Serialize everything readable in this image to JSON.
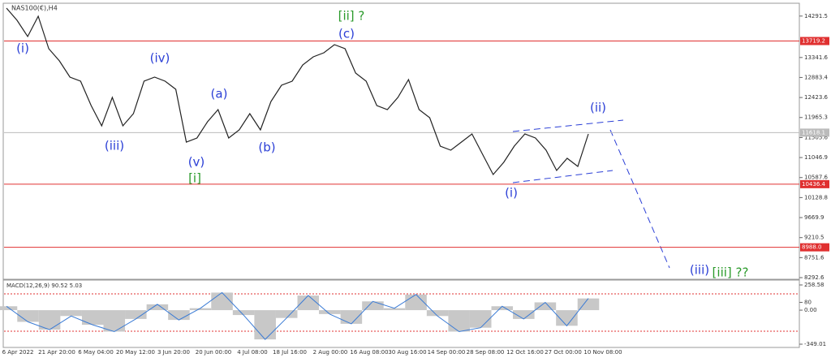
{
  "chart_data": {
    "type": "line",
    "title": "NAS100(€),H4",
    "series": [
      {
        "name": "NAS100",
        "color": "#222222",
        "values": [
          14474,
          14195,
          13822,
          14288,
          13543,
          13264,
          12891,
          12798,
          12240,
          11774,
          12426,
          11774,
          12053,
          12798,
          12891,
          12798,
          12612,
          11402,
          11495,
          11867,
          12146,
          11495,
          11681,
          12053,
          11681,
          12333,
          12705,
          12798,
          13170,
          13357,
          13450,
          13636,
          13543,
          12984,
          12798,
          12240,
          12146,
          12426,
          12835,
          12146,
          11960,
          11309,
          11215,
          11402,
          11588,
          11123,
          10657,
          10936,
          11309,
          11588,
          11495,
          11215,
          10750,
          11029,
          10843,
          11588
        ]
      }
    ],
    "ylim": [
      8274,
      14567
    ],
    "yticks": [
      14291.5,
      13341.6,
      12883.4,
      12423.6,
      11965.3,
      11505.6,
      11046.9,
      10587.6,
      10128.8,
      9669.9,
      9210.5,
      8751.6,
      8292.6
    ],
    "levels": [
      {
        "value": 13719.2,
        "label": "13719.2",
        "color": "#e03030"
      },
      {
        "value": 11618.1,
        "label": "11618.1",
        "color": "#bbbbbb"
      },
      {
        "value": 10436.4,
        "label": "10436.4",
        "color": "#e03030"
      },
      {
        "value": 8988.0,
        "label": "8988.0",
        "color": "#e03030"
      }
    ],
    "time_labels": [
      "6 Apr 2022",
      "21 Apr 20:00",
      "6 May 04:00",
      "20 May 12:00",
      "3 Jun 20:00",
      "20 Jun 00:00",
      "4 Jul 08:00",
      "18 Jul 16:00",
      "2 Aug 00:00",
      "16 Aug 08:00",
      "30 Aug 16:00",
      "14 Sep 00:00",
      "28 Sep 08:00",
      "12 Oct 16:00",
      "27 Oct 00:00",
      "10 Nov 08:00"
    ],
    "annotations": [
      {
        "text": "(i)",
        "color": "#2b3fd6"
      },
      {
        "text": "(iii)",
        "color": "#2b3fd6"
      },
      {
        "text": "(iv)",
        "color": "#2b3fd6"
      },
      {
        "text": "(v)",
        "color": "#2b3fd6"
      },
      {
        "text": "[i]",
        "color": "#2a9a2a"
      },
      {
        "text": "(a)",
        "color": "#2b3fd6"
      },
      {
        "text": "(b)",
        "color": "#2b3fd6"
      },
      {
        "text": "[ii] ?",
        "color": "#2a9a2a"
      },
      {
        "text": "(c)",
        "color": "#2b3fd6"
      },
      {
        "text": "(i)",
        "color": "#2b3fd6"
      },
      {
        "text": "(ii)",
        "color": "#2b3fd6"
      },
      {
        "text": "(iii)",
        "color": "#2b3fd6"
      },
      {
        "text": "[iii] ??",
        "color": "#2a9a2a"
      }
    ],
    "macd": {
      "title": "MACD(12,26,9) 90.52 5.03",
      "color": "#3a7bd5",
      "values": [
        40,
        -120,
        -200,
        -60,
        -150,
        -220,
        -90,
        60,
        -100,
        20,
        180,
        -50,
        -300,
        -80,
        150,
        -40,
        -140,
        90,
        20,
        160,
        -60,
        -220,
        -180,
        40,
        -90,
        80,
        -160,
        120
      ],
      "ylim": [
        -349.01,
        258.58
      ],
      "yticks": [
        258.58,
        80,
        {
          "value": 0,
          "label": "0.00"
        },
        -349.01
      ]
    }
  }
}
